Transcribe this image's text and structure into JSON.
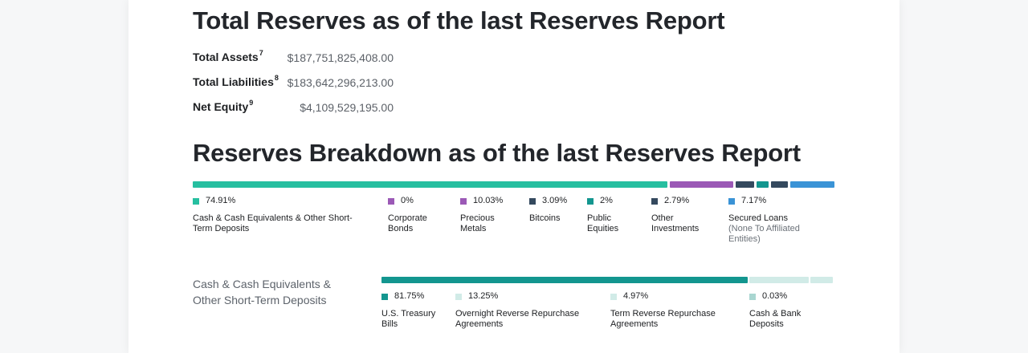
{
  "totals": {
    "title": "Total Reserves as of the last Reserves Report",
    "rows": [
      {
        "label": "Total Assets",
        "sup": "7",
        "value": "$187,751,825,408.00"
      },
      {
        "label": "Total Liabilities",
        "sup": "8",
        "value": "$183,642,296,213.00"
      },
      {
        "label": "Net Equity",
        "sup": "9",
        "value": "$4,109,529,195.00"
      }
    ]
  },
  "breakdown": {
    "title": "Reserves Breakdown as of the last Reserves Report",
    "items": [
      {
        "pct": "74.91%",
        "share": 74.91,
        "name": "Cash & Cash Equivalents & Other Short-Term Deposits",
        "sub": "",
        "color": "#26bfa0"
      },
      {
        "pct": "0%",
        "share": 0,
        "name": "Corporate Bonds",
        "sub": "",
        "color": "#9b59b6"
      },
      {
        "pct": "10.03%",
        "share": 10.03,
        "name": "Precious Metals",
        "sub": "",
        "color": "#9b59b6"
      },
      {
        "pct": "3.09%",
        "share": 3.09,
        "name": "Bitcoins",
        "sub": "",
        "color": "#34495e"
      },
      {
        "pct": "2%",
        "share": 2,
        "name": "Public Equities",
        "sub": "",
        "color": "#13968f"
      },
      {
        "pct": "2.79%",
        "share": 2.79,
        "name": "Other Investments",
        "sub": "",
        "color": "#34495e"
      },
      {
        "pct": "7.17%",
        "share": 7.17,
        "name": "Secured Loans",
        "sub": "(None To Affiliated Entities)",
        "color": "#3a93d6"
      }
    ]
  },
  "cash": {
    "label": "Cash & Cash Equivalents & Other Short-Term Deposits",
    "items": [
      {
        "pct": "81.75%",
        "share": 81.75,
        "name": "U.S. Treasury Bills",
        "color": "#13968f"
      },
      {
        "pct": "13.25%",
        "share": 13.25,
        "name": "Overnight Reverse Repurchase Agreements",
        "color": "#d1ebe7"
      },
      {
        "pct": "4.97%",
        "share": 4.97,
        "name": "Term Reverse Repurchase Agreements",
        "color": "#d1ebe7"
      },
      {
        "pct": "0.03%",
        "share": 0.03,
        "name": "Cash & Bank Deposits",
        "color": "#a9d6d1"
      }
    ]
  }
}
